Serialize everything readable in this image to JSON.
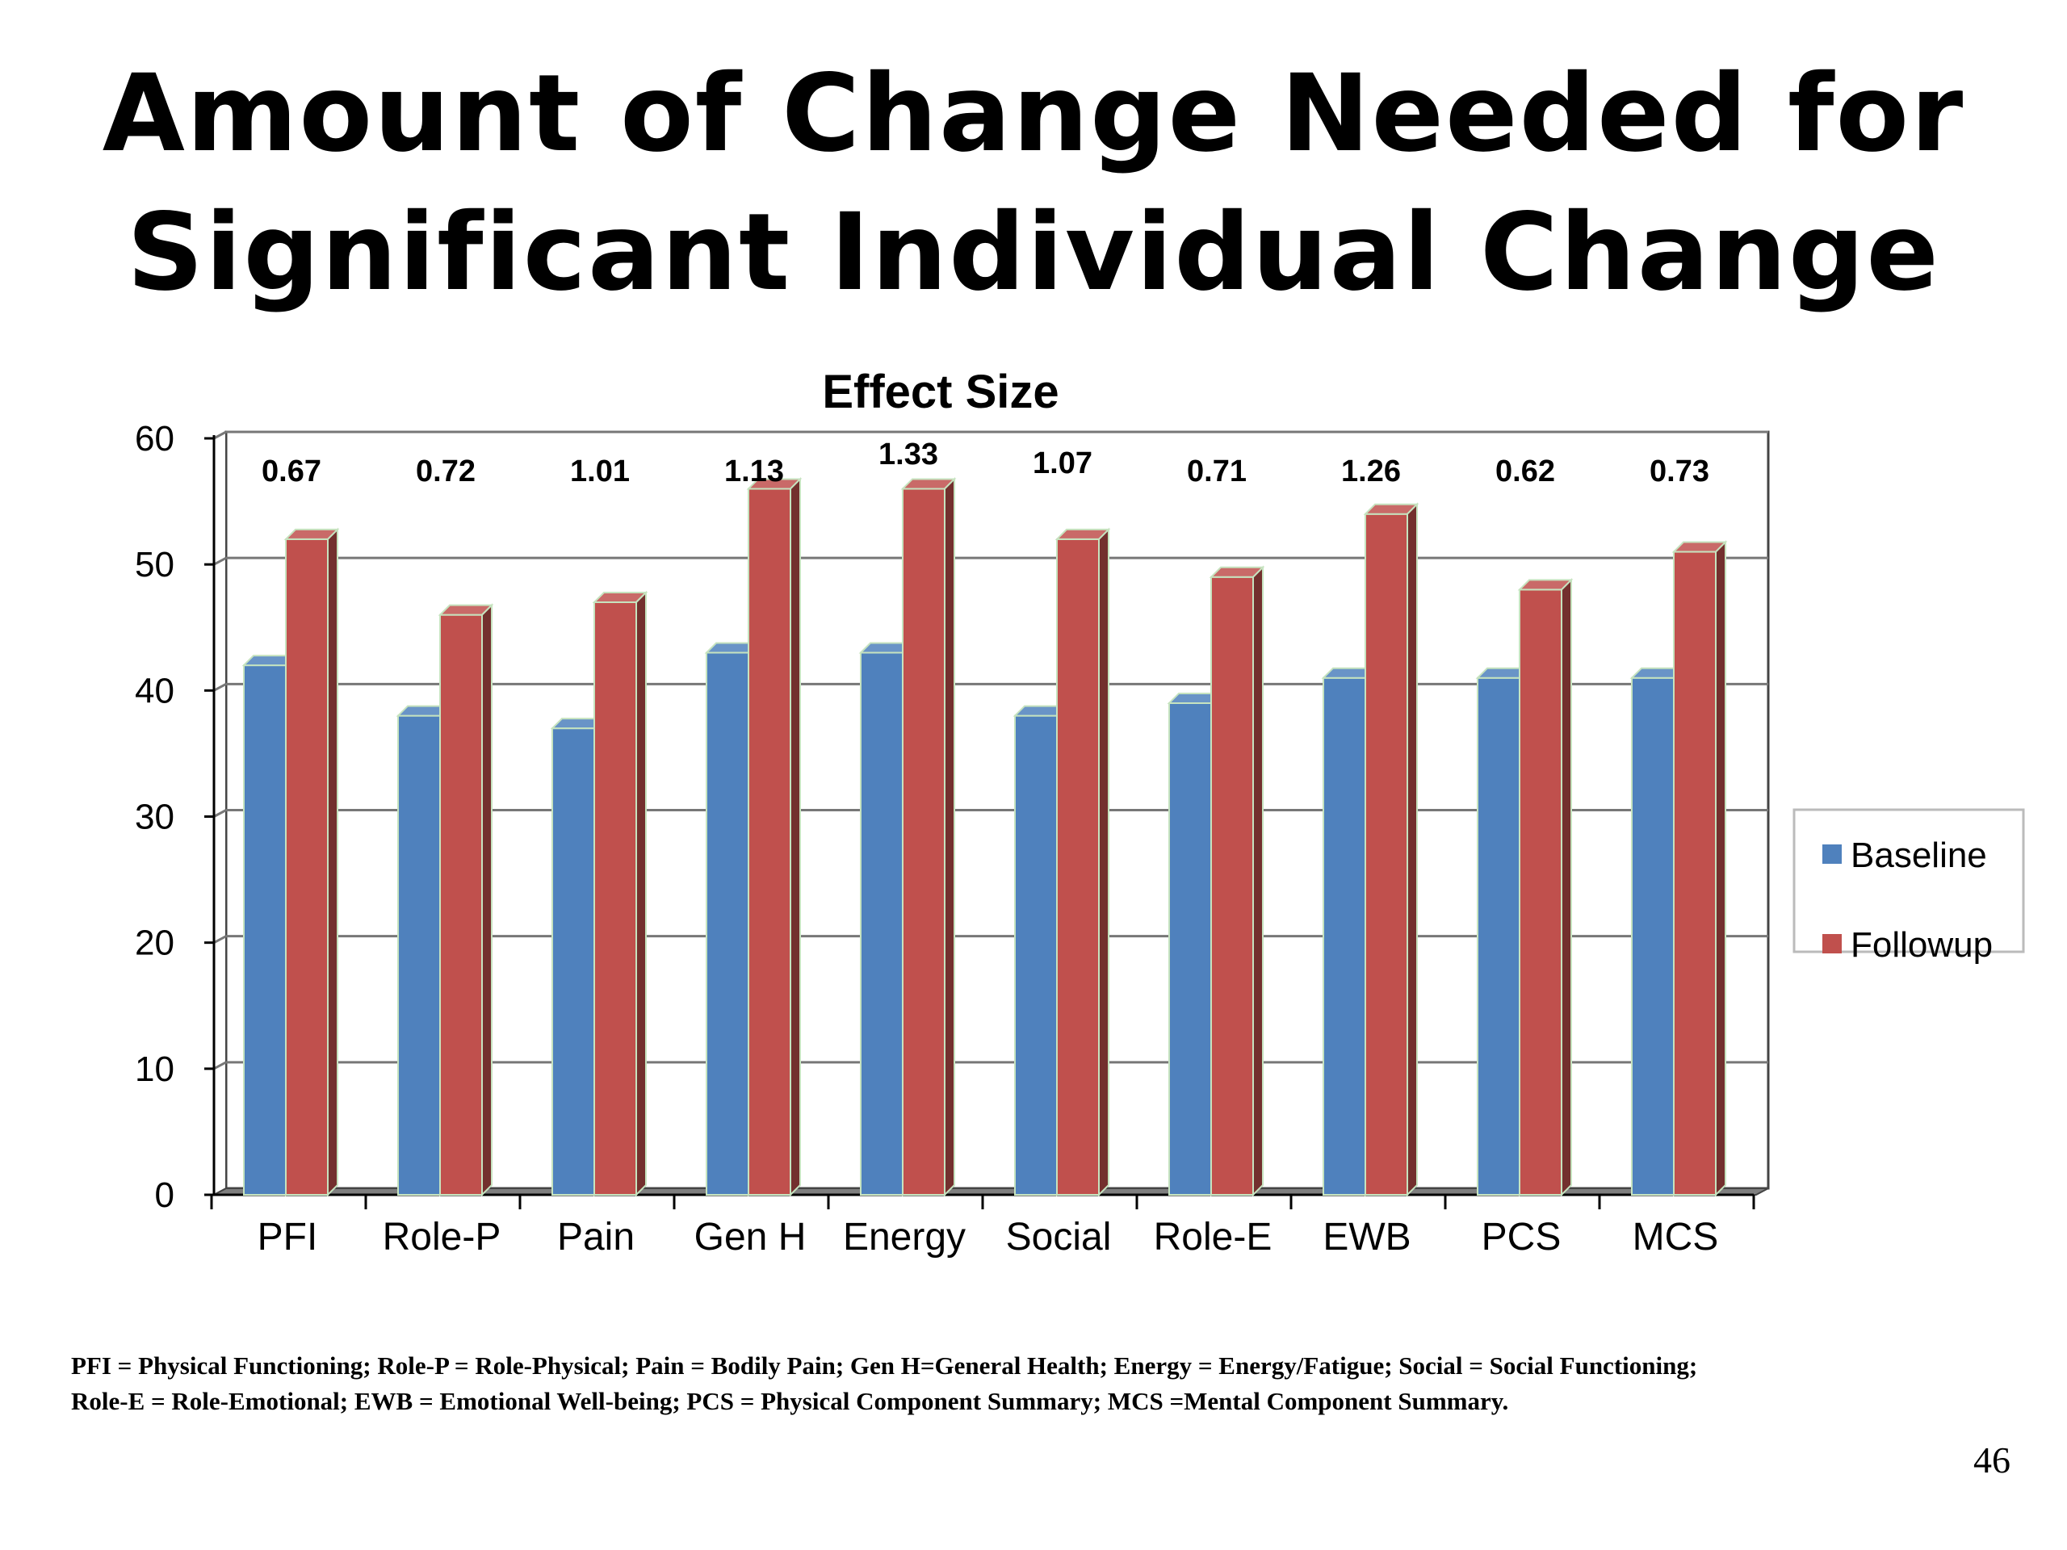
{
  "slide": {
    "title_line1": "Amount of Change Needed for",
    "title_line2": "Significant Individual Change",
    "footnote_line1": "PFI = Physical Functioning; Role-P = Role-Physical; Pain = Bodily Pain; Gen H=General Health; Energy = Energy/Fatigue; Social = Social Functioning;",
    "footnote_line2": "Role-E = Role-Emotional; EWB = Emotional Well-being; PCS = Physical Component Summary; MCS =Mental Component Summary.",
    "page_number": "46"
  },
  "chart_data": {
    "type": "bar",
    "title": "Effect Size",
    "xlabel": "",
    "ylabel": "",
    "ylim": [
      0,
      60
    ],
    "yticks": [
      0,
      10,
      20,
      30,
      40,
      50,
      60
    ],
    "grid": true,
    "legend_position": "right",
    "categories": [
      "PFI",
      "Role-P",
      "Pain",
      "Gen H",
      "Energy",
      "Social",
      "Role-E",
      "EWB",
      "PCS",
      "MCS"
    ],
    "series": [
      {
        "name": "Baseline",
        "color": "#4f81bd",
        "values": [
          42,
          38,
          37,
          43,
          43,
          38,
          39,
          41,
          41,
          41
        ]
      },
      {
        "name": "Followup",
        "color": "#c0504d",
        "values": [
          52,
          46,
          47,
          56,
          56,
          52,
          49,
          54,
          48,
          51
        ]
      }
    ],
    "data_labels": [
      "0.67",
      "0.72",
      "1.01",
      "1.13",
      "1.33",
      "1.07",
      "0.71",
      "1.26",
      "0.62",
      "0.73"
    ]
  }
}
